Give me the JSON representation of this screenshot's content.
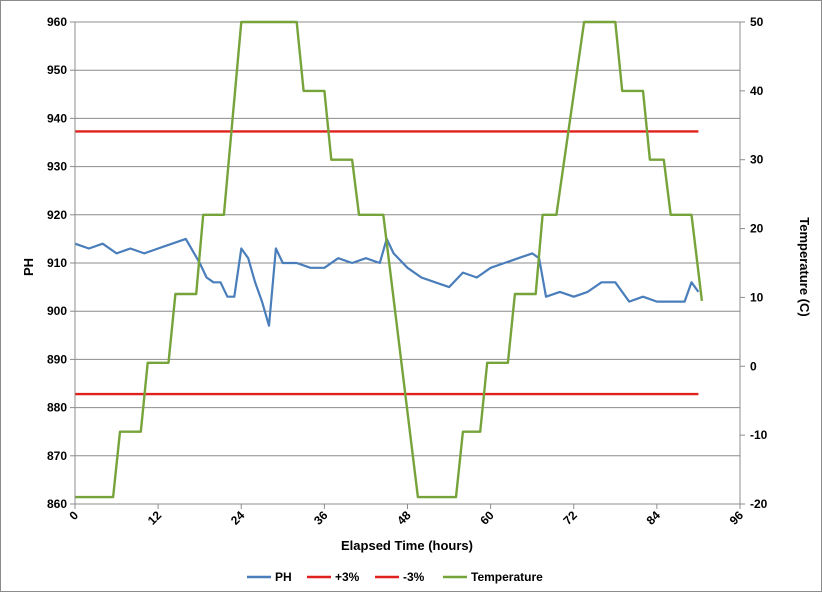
{
  "chart_data": {
    "type": "line",
    "title": "",
    "xlabel": "Elapsed Time (hours)",
    "ylabel": "PH",
    "y2label": "Temperature (C)",
    "xlim": [
      0,
      96
    ],
    "ylim": [
      860,
      960
    ],
    "y2lim": [
      -20,
      50
    ],
    "x_ticks": [
      "0",
      "12",
      "24",
      "36",
      "48",
      "60",
      "72",
      "84",
      "96"
    ],
    "y_ticks": [
      "860",
      "870",
      "880",
      "890",
      "900",
      "910",
      "920",
      "930",
      "940",
      "950",
      "960"
    ],
    "y2_ticks": [
      "-20",
      "-10",
      "0",
      "10",
      "20",
      "30",
      "40",
      "50"
    ],
    "grid": true,
    "legend_position": "bottom",
    "series": [
      {
        "name": "PH",
        "axis": "left",
        "color": "#4a7ebb",
        "x": [
          0,
          2,
          4,
          6,
          8,
          10,
          12,
          14,
          16,
          18,
          19,
          20,
          21,
          22,
          23,
          24,
          25,
          26,
          27,
          28,
          29,
          30,
          32,
          34,
          36,
          38,
          40,
          42,
          44,
          45,
          46,
          48,
          50,
          52,
          54,
          56,
          58,
          60,
          62,
          64,
          66,
          67,
          68,
          70,
          72,
          74,
          76,
          78,
          80,
          82,
          84,
          86,
          88,
          89,
          90
        ],
        "y": [
          914,
          913,
          914,
          912,
          913,
          912,
          913,
          914,
          915,
          910,
          907,
          906,
          906,
          903,
          903,
          913,
          911,
          906,
          902,
          897,
          913,
          910,
          910,
          909,
          909,
          911,
          910,
          911,
          910,
          915,
          912,
          909,
          907,
          906,
          905,
          908,
          907,
          909,
          910,
          911,
          912,
          911,
          903,
          904,
          903,
          904,
          906,
          906,
          902,
          903,
          902,
          902,
          902,
          906,
          904
        ]
      },
      {
        "name": "+3%",
        "axis": "left",
        "color": "#e0201d",
        "x": [
          0,
          90
        ],
        "y": [
          937.3,
          937.3
        ]
      },
      {
        "name": "-3%",
        "axis": "left",
        "color": "#e0201d",
        "x": [
          0,
          90
        ],
        "y": [
          882.8,
          882.8
        ]
      },
      {
        "name": "Temperature",
        "axis": "right",
        "color": "#77a33b",
        "x": [
          0,
          5.5,
          6.5,
          9.5,
          10.5,
          13.5,
          14.5,
          17.5,
          18.5,
          21.5,
          24,
          32,
          33,
          36,
          37,
          40,
          41,
          44.5,
          49.5,
          55,
          56,
          58.5,
          59.5,
          62.5,
          63.5,
          66.5,
          67.5,
          69.5,
          73.5,
          78,
          79,
          82,
          83,
          85,
          86,
          89,
          90.5
        ],
        "y": [
          -19,
          -19,
          -9.5,
          -9.5,
          0.5,
          0.5,
          10.5,
          10.5,
          22,
          22,
          50,
          50,
          40,
          40,
          30,
          30,
          22,
          22,
          -19,
          -19,
          -9.5,
          -9.5,
          0.5,
          0.5,
          10.5,
          10.5,
          22,
          22,
          50,
          50,
          40,
          40,
          30,
          30,
          22,
          22,
          9.5
        ]
      }
    ]
  }
}
